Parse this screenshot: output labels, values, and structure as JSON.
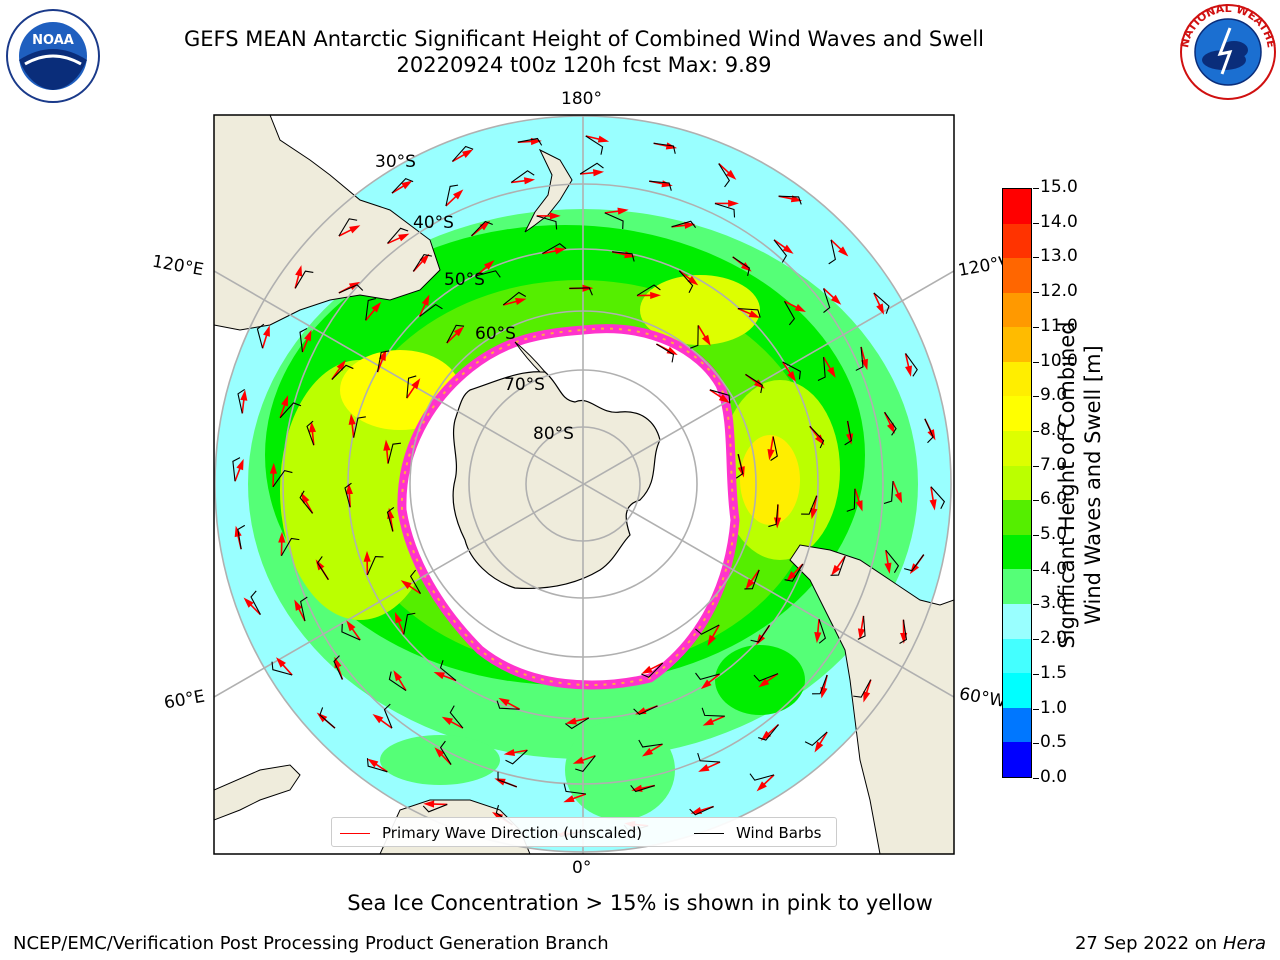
{
  "title": {
    "line1": "GEFS MEAN Antarctic Significant Height of Combined Wind Waves and Swell",
    "line2": "20220924 t00z 120h fcst   Max: 9.89"
  },
  "logos": {
    "left_icon": "noaa-logo",
    "left_text": "NOAA",
    "left_ring_text": "NATIONAL OCEANIC AND ATMOSPHERIC ADMINISTRATION · U.S. DEPARTMENT OF COMMERCE",
    "right_icon": "nws-logo",
    "right_ring_text": "NATIONAL WEATHER SERVICE"
  },
  "map": {
    "projection": "south-polar-stereographic",
    "longitude_labels": {
      "top": "180°",
      "bottom": "0°",
      "left_upper": "120°E",
      "left_lower": "60°E",
      "right_upper": "120°W",
      "right_lower": "60°W"
    },
    "latitude_labels": [
      "30°S",
      "40°S",
      "50°S",
      "60°S",
      "70°S",
      "80°S"
    ],
    "colors": {
      "land": "#efecdc",
      "ice_edge": "#ff33cc",
      "ice_inner": "#ffffff",
      "arrow": "#ff0000",
      "barb": "#000000",
      "grid": "#b0b0b0"
    }
  },
  "legend": {
    "items": [
      {
        "label": "Primary Wave Direction (unscaled)",
        "color": "#ff0000"
      },
      {
        "label": "Wind Barbs",
        "color": "#000000"
      }
    ]
  },
  "colorbar": {
    "label_line1": "Significant Height of Combined",
    "label_line2": "Wind Waves and Swell [m]",
    "ticks": [
      "0.0",
      "0.5",
      "1.0",
      "1.5",
      "2.0",
      "3.0",
      "4.0",
      "5.0",
      "6.0",
      "7.0",
      "8.0",
      "9.0",
      "10.0",
      "11.0",
      "12.0",
      "13.0",
      "14.0",
      "15.0"
    ],
    "colors": [
      "#0000ff",
      "#0077ff",
      "#00ffff",
      "#44ffff",
      "#99ffff",
      "#55ff77",
      "#00ee00",
      "#55ee00",
      "#bbff00",
      "#ddff00",
      "#ffff00",
      "#ffee00",
      "#ffbb00",
      "#ff9900",
      "#ff6600",
      "#ff3300",
      "#ff0000"
    ]
  },
  "notes": {
    "ice": "Sea Ice Concentration > 15% is shown in pink to yellow",
    "footer_left": "NCEP/EMC/Verification Post Processing Product Generation Branch",
    "footer_date": "27 Sep 2022 on",
    "footer_host": "Hera"
  }
}
